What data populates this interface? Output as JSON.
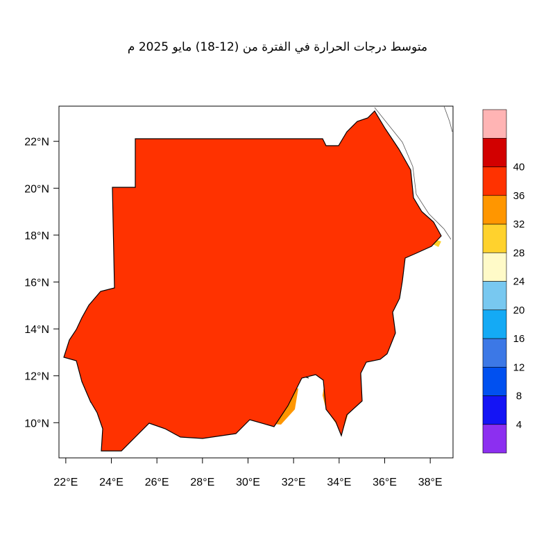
{
  "title": "متوسط درجات الحرارة في الفترة من (12-18) مايو 2025 م",
  "map": {
    "lon_range": [
      21.7,
      39.0
    ],
    "lat_range": [
      8.5,
      23.5
    ],
    "lon_ticks": [
      22,
      24,
      26,
      28,
      30,
      32,
      34,
      36,
      38
    ],
    "lat_ticks": [
      10,
      12,
      14,
      16,
      18,
      20,
      22
    ],
    "lon_tick_labels": [
      "22°E",
      "24°E",
      "26°E",
      "28°E",
      "30°E",
      "32°E",
      "34°E",
      "36°E",
      "38°E"
    ],
    "lat_tick_labels": [
      "10°N",
      "12°N",
      "14°N",
      "16°N",
      "18°N",
      "20°N",
      "22°N"
    ]
  },
  "colorbar": {
    "labels": [
      "4",
      "8",
      "12",
      "16",
      "20",
      "24",
      "28",
      "32",
      "36",
      "40"
    ],
    "colors": [
      "#8c2ff0",
      "#1414f5",
      "#0050f0",
      "#3c78e6",
      "#14aaf5",
      "#78c8f0",
      "#fffac8",
      "#ffd22d",
      "#ff9600",
      "#ff3200",
      "#d20000",
      "#ffb4b4"
    ]
  },
  "colors": {
    "temp_28_32": "#ff9600",
    "temp_32_36": "#ff3200",
    "temp_24_28": "#ffd22d",
    "temp_36_40": "#d20000",
    "border": "#000000"
  }
}
